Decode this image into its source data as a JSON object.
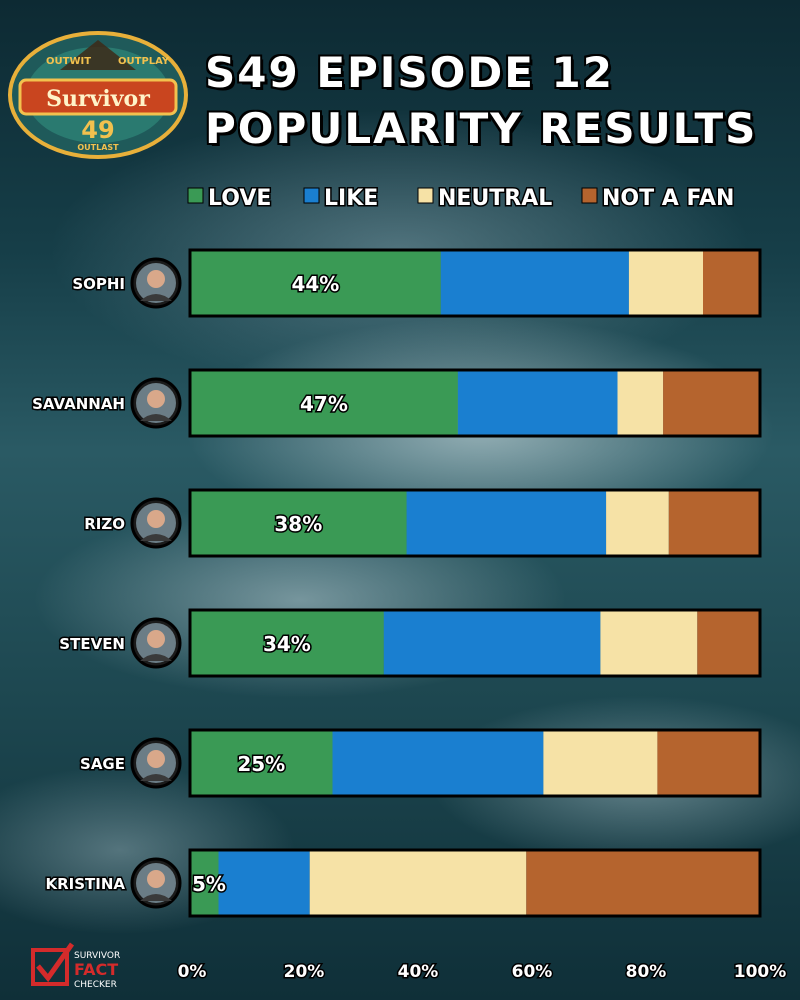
{
  "brand": {
    "logo_top": "OUTWIT",
    "logo_top_right": "OUTPLAY",
    "logo_main": "Survivor",
    "logo_number": "49",
    "logo_bottom": "OUTLAST",
    "footer_line1": "SURVIVOR",
    "footer_line2": "FACT",
    "footer_line3": "CHECKER"
  },
  "colors": {
    "love": "#3a9a55",
    "like": "#1a7fd0",
    "neutral": "#f6e2a6",
    "not_a_fan": "#b5642e"
  },
  "chart_data": {
    "type": "bar",
    "orientation": "horizontal",
    "stacked": true,
    "title_line1": "S49 EPISODE 12",
    "title_line2": "POPULARITY RESULTS",
    "categories": [
      "SOPHI",
      "SAVANNAH",
      "RIZO",
      "STEVEN",
      "SAGE",
      "KRISTINA"
    ],
    "series": [
      {
        "name": "LOVE",
        "values": [
          44,
          47,
          38,
          34,
          25,
          5
        ]
      },
      {
        "name": "LIKE",
        "values": [
          33,
          28,
          35,
          38,
          37,
          16
        ]
      },
      {
        "name": "NEUTRAL",
        "values": [
          13,
          8,
          11,
          17,
          20,
          38
        ]
      },
      {
        "name": "NOT A FAN",
        "values": [
          10,
          17,
          16,
          11,
          18,
          41
        ]
      }
    ],
    "data_labels": [
      "44%",
      "47%",
      "38%",
      "34%",
      "25%",
      "5%"
    ],
    "x_ticks": [
      "0%",
      "20%",
      "40%",
      "60%",
      "80%",
      "100%"
    ],
    "xlim": [
      0,
      100
    ],
    "legend_position": "top",
    "grid": false
  }
}
